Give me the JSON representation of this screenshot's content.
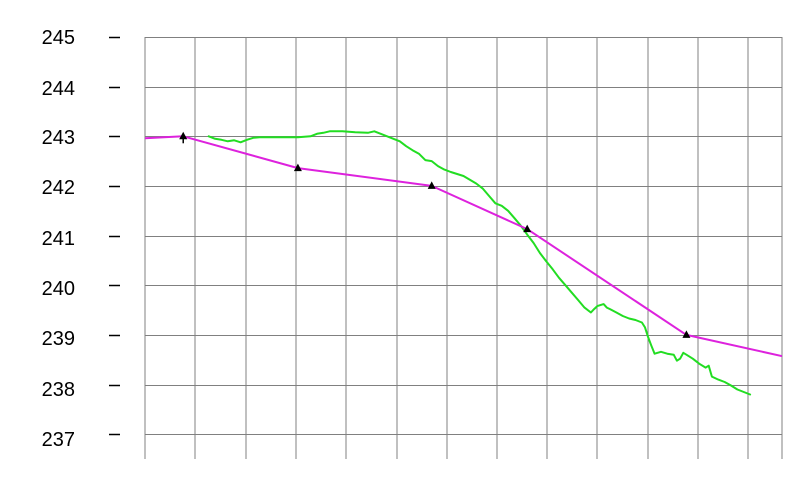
{
  "chart_data": {
    "type": "line",
    "title": "",
    "xlabel": "",
    "ylabel": "",
    "ylim": [
      236.5,
      245
    ],
    "xlim": [
      0,
      100
    ],
    "yticks": [
      245,
      244,
      243,
      242,
      241,
      240,
      239,
      238,
      237
    ],
    "ytick_labels": [
      "245",
      "244",
      "243",
      "242",
      "241",
      "240",
      "239",
      "238",
      "237"
    ],
    "grid": true,
    "legend": "none",
    "colors": {
      "green_series": "#22dd22",
      "magenta_series": "#dd22dd",
      "markers": "#000000",
      "grid": "#808080"
    },
    "series": [
      {
        "points": [
          [
            10,
            243.0
          ],
          [
            11,
            242.95
          ],
          [
            12,
            242.93
          ],
          [
            13,
            242.9
          ],
          [
            14,
            242.92
          ],
          [
            15,
            242.88
          ],
          [
            16,
            242.93
          ],
          [
            17,
            242.97
          ],
          [
            18,
            242.98
          ],
          [
            20,
            242.98
          ],
          [
            22,
            242.98
          ],
          [
            24,
            242.98
          ],
          [
            26,
            243.0
          ],
          [
            27,
            243.05
          ],
          [
            28,
            243.07
          ],
          [
            29,
            243.1
          ],
          [
            31,
            243.1
          ],
          [
            33,
            243.08
          ],
          [
            35,
            243.07
          ],
          [
            36,
            243.1
          ],
          [
            37,
            243.05
          ],
          [
            39,
            242.95
          ],
          [
            40,
            242.9
          ],
          [
            41,
            242.8
          ],
          [
            42,
            242.72
          ],
          [
            43,
            242.65
          ],
          [
            44,
            242.52
          ],
          [
            45,
            242.5
          ],
          [
            46,
            242.4
          ],
          [
            47,
            242.33
          ],
          [
            48,
            242.28
          ],
          [
            50,
            242.2
          ],
          [
            52,
            242.05
          ],
          [
            53,
            241.95
          ],
          [
            54,
            241.8
          ],
          [
            55,
            241.65
          ],
          [
            56,
            241.6
          ],
          [
            57,
            241.5
          ],
          [
            58,
            241.35
          ],
          [
            59,
            241.2
          ],
          [
            60,
            241.02
          ],
          [
            61,
            240.85
          ],
          [
            62,
            240.65
          ],
          [
            63,
            240.48
          ],
          [
            64,
            240.32
          ],
          [
            65,
            240.15
          ],
          [
            66,
            240.0
          ],
          [
            67,
            239.85
          ],
          [
            68,
            239.7
          ],
          [
            69,
            239.55
          ],
          [
            70,
            239.45
          ],
          [
            70.5,
            239.52
          ],
          [
            71,
            239.58
          ],
          [
            72,
            239.62
          ],
          [
            72.5,
            239.55
          ],
          [
            73,
            239.52
          ],
          [
            74,
            239.45
          ],
          [
            75,
            239.38
          ],
          [
            76,
            239.33
          ],
          [
            77,
            239.3
          ],
          [
            78,
            239.25
          ],
          [
            78.5,
            239.15
          ],
          [
            79,
            238.95
          ],
          [
            79.5,
            238.78
          ],
          [
            80,
            238.62
          ],
          [
            81,
            238.66
          ],
          [
            82,
            238.62
          ],
          [
            83,
            238.6
          ],
          [
            83.5,
            238.48
          ],
          [
            84,
            238.52
          ],
          [
            84.5,
            238.64
          ],
          [
            85,
            238.6
          ],
          [
            86,
            238.52
          ],
          [
            87,
            238.42
          ],
          [
            88,
            238.34
          ],
          [
            88.5,
            238.38
          ],
          [
            89,
            238.16
          ],
          [
            90,
            238.1
          ],
          [
            91,
            238.05
          ],
          [
            92,
            237.98
          ],
          [
            93,
            237.9
          ],
          [
            94,
            237.85
          ],
          [
            95,
            237.8
          ]
        ]
      },
      {
        "points": [
          [
            -6,
            242.92
          ],
          [
            6,
            243.0
          ],
          [
            24,
            242.36
          ],
          [
            45,
            242.0
          ],
          [
            60,
            241.13
          ],
          [
            85,
            239.0
          ],
          [
            105,
            238.43
          ]
        ]
      }
    ],
    "markers": [
      {
        "x": 6,
        "y": 243.0
      },
      {
        "x": 24,
        "y": 242.36
      },
      {
        "x": 45,
        "y": 242.0
      },
      {
        "x": 60,
        "y": 241.13
      },
      {
        "x": 85,
        "y": 239.0
      }
    ]
  }
}
